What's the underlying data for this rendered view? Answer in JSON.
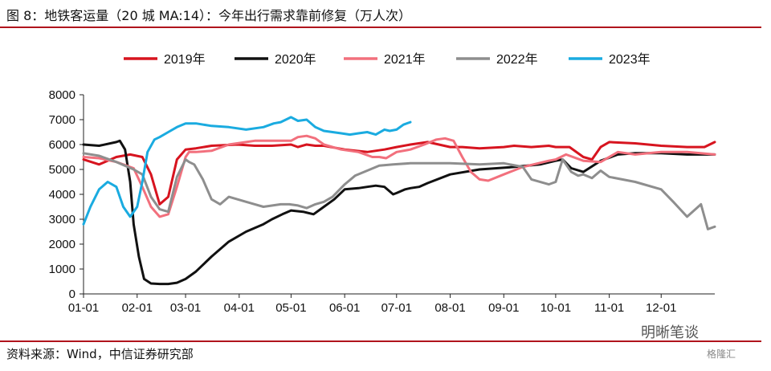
{
  "title": "图 8：地铁客运量（20 城 MA:14）：今年出行需求靠前修复（万人次）",
  "source": "资料来源：Wind，中信证券研究部",
  "watermark": "明晰笔谈",
  "watermark2": "格隆汇",
  "chart_data": {
    "type": "line",
    "x_ticks": [
      "01-01",
      "02-01",
      "03-01",
      "04-01",
      "05-01",
      "06-01",
      "07-01",
      "08-01",
      "09-01",
      "10-01",
      "11-01",
      "12-01"
    ],
    "x_tick_doy": [
      1,
      32,
      60,
      91,
      121,
      152,
      182,
      213,
      244,
      274,
      305,
      335
    ],
    "xlim": [
      1,
      366
    ],
    "ylim": [
      0,
      8000
    ],
    "y_ticks": [
      0,
      1000,
      2000,
      3000,
      4000,
      5000,
      6000,
      7000,
      8000
    ],
    "legend_position": "top",
    "series": [
      {
        "name": "2019年",
        "color": "#d7141f",
        "x": [
          1,
          10,
          20,
          28,
          35,
          40,
          45,
          50,
          55,
          60,
          66,
          75,
          90,
          100,
          110,
          121,
          125,
          130,
          135,
          140,
          152,
          165,
          175,
          182,
          190,
          200,
          213,
          220,
          230,
          244,
          250,
          260,
          270,
          274,
          282,
          290,
          295,
          300,
          305,
          320,
          335,
          350,
          360,
          366
        ],
        "y": [
          5400,
          5200,
          5500,
          5600,
          5500,
          4800,
          3600,
          3900,
          5400,
          5800,
          5850,
          5950,
          6000,
          5950,
          5950,
          6000,
          5900,
          6000,
          5950,
          5950,
          5800,
          5700,
          5800,
          5900,
          6000,
          6100,
          5900,
          5900,
          5850,
          5900,
          5950,
          5900,
          5950,
          5900,
          5900,
          5500,
          5400,
          5900,
          6100,
          6050,
          5950,
          5900,
          5900,
          6100
        ]
      },
      {
        "name": "2020年",
        "color": "#111111",
        "x": [
          1,
          10,
          20,
          22,
          25,
          28,
          30,
          33,
          36,
          40,
          45,
          50,
          55,
          60,
          66,
          75,
          85,
          95,
          105,
          110,
          116,
          121,
          128,
          134,
          140,
          146,
          152,
          160,
          165,
          170,
          175,
          180,
          182,
          187,
          190,
          195,
          200,
          213,
          230,
          250,
          265,
          274,
          278,
          283,
          290,
          300,
          310,
          320,
          335,
          350,
          366
        ],
        "y": [
          6000,
          5950,
          6100,
          6150,
          5800,
          4500,
          2800,
          1500,
          600,
          420,
          400,
          400,
          450,
          600,
          900,
          1500,
          2100,
          2500,
          2800,
          3000,
          3200,
          3350,
          3300,
          3200,
          3500,
          3800,
          4200,
          4250,
          4300,
          4350,
          4300,
          4000,
          4050,
          4200,
          4250,
          4300,
          4450,
          4800,
          5000,
          5100,
          5200,
          5350,
          5400,
          5050,
          4900,
          5350,
          5600,
          5650,
          5650,
          5600,
          5600
        ]
      },
      {
        "name": "2021年",
        "color": "#f2707d",
        "x": [
          1,
          10,
          20,
          30,
          35,
          40,
          45,
          50,
          55,
          60,
          62,
          66,
          75,
          85,
          95,
          100,
          110,
          121,
          125,
          130,
          135,
          140,
          150,
          160,
          168,
          172,
          176,
          182,
          190,
          198,
          205,
          210,
          215,
          220,
          225,
          230,
          235,
          244,
          255,
          270,
          274,
          280,
          290,
          300,
          310,
          320,
          335,
          350,
          366
        ],
        "y": [
          5500,
          5450,
          5300,
          5050,
          4300,
          3500,
          3100,
          3200,
          4300,
          5500,
          5700,
          5700,
          5750,
          6000,
          6100,
          6150,
          6150,
          6150,
          6300,
          6350,
          6250,
          6000,
          5800,
          5700,
          5500,
          5500,
          5450,
          5700,
          5800,
          6000,
          6200,
          6250,
          6150,
          5500,
          4900,
          4600,
          4550,
          4800,
          5100,
          5350,
          5400,
          5600,
          5350,
          5300,
          5700,
          5600,
          5700,
          5700,
          5600
        ]
      },
      {
        "name": "2022年",
        "color": "#8e8e8e",
        "x": [
          1,
          10,
          20,
          30,
          35,
          40,
          45,
          50,
          55,
          60,
          62,
          65,
          70,
          75,
          80,
          85,
          90,
          95,
          105,
          115,
          120,
          125,
          130,
          135,
          140,
          145,
          152,
          158,
          165,
          172,
          180,
          190,
          200,
          213,
          230,
          244,
          255,
          260,
          270,
          274,
          278,
          283,
          287,
          290,
          295,
          300,
          305,
          320,
          335,
          342,
          350,
          358,
          362,
          366
        ],
        "y": [
          5650,
          5550,
          5300,
          5000,
          4800,
          3900,
          3400,
          3300,
          4700,
          5400,
          5300,
          5200,
          4600,
          3800,
          3600,
          3900,
          3800,
          3700,
          3500,
          3600,
          3600,
          3550,
          3450,
          3600,
          3700,
          3900,
          4400,
          4750,
          4950,
          5150,
          5200,
          5250,
          5250,
          5250,
          5200,
          5250,
          5100,
          4600,
          4400,
          4500,
          5400,
          4900,
          4750,
          4800,
          4650,
          4950,
          4700,
          4500,
          4200,
          3700,
          3100,
          3600,
          2600,
          2700
        ]
      },
      {
        "name": "2023年",
        "color": "#1aabe0",
        "x": [
          1,
          5,
          10,
          15,
          20,
          24,
          28,
          32,
          35,
          38,
          42,
          45,
          50,
          55,
          60,
          66,
          75,
          85,
          95,
          105,
          111,
          115,
          121,
          125,
          130,
          135,
          140,
          145,
          150,
          155,
          160,
          165,
          170,
          175,
          178,
          182,
          186,
          190
        ],
        "y": [
          2800,
          3500,
          4200,
          4500,
          4300,
          3500,
          3100,
          3500,
          4500,
          5700,
          6200,
          6300,
          6500,
          6700,
          6850,
          6850,
          6750,
          6700,
          6600,
          6700,
          6850,
          6900,
          7100,
          6950,
          7000,
          6700,
          6550,
          6500,
          6450,
          6400,
          6450,
          6500,
          6400,
          6600,
          6550,
          6600,
          6800,
          6900
        ]
      }
    ]
  }
}
